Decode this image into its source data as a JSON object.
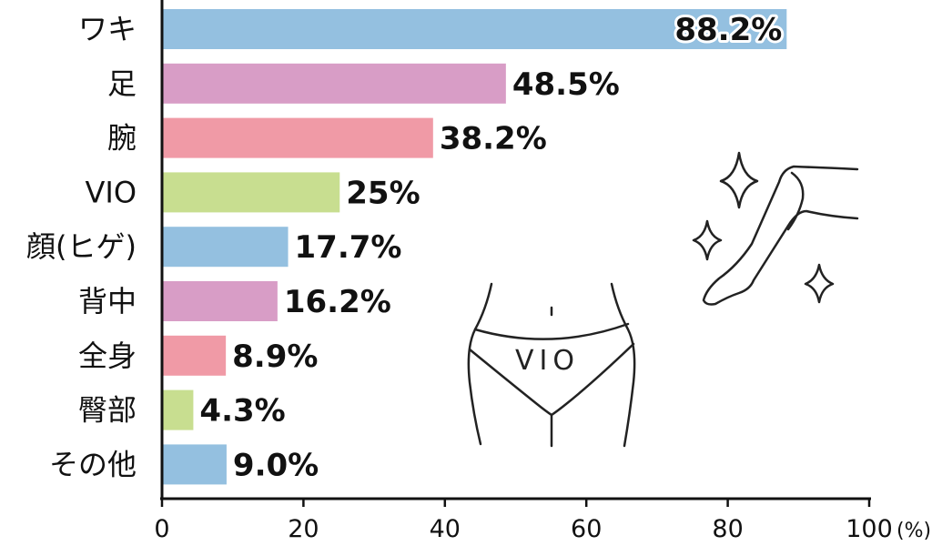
{
  "chart_data": {
    "type": "bar",
    "orientation": "horizontal",
    "categories": [
      "ワキ",
      "足",
      "腕",
      "VIO",
      "顔(ヒゲ)",
      "背中",
      "全身",
      "臀部",
      "その他"
    ],
    "values": [
      88.2,
      48.5,
      38.2,
      25,
      17.7,
      16.2,
      8.9,
      4.3,
      9.0
    ],
    "value_labels": [
      "88.2%",
      "48.5%",
      "38.2%",
      "25%",
      "17.7%",
      "16.2%",
      "8.9%",
      "4.3%",
      "9.0%"
    ],
    "colors": [
      "#94c0e0",
      "#d89dc6",
      "#f09aa6",
      "#c8de90",
      "#94c0e0",
      "#d89dc6",
      "#f09aa6",
      "#c8de90",
      "#94c0e0"
    ],
    "xlim": [
      0,
      100
    ],
    "x_ticks": [
      "0",
      "20",
      "40",
      "60",
      "80",
      "100"
    ],
    "x_unit": "(%)",
    "grid": false
  },
  "illustration": {
    "label": "VIO",
    "icons": [
      "sparkle-icon",
      "leg-icon",
      "briefs-icon"
    ]
  }
}
